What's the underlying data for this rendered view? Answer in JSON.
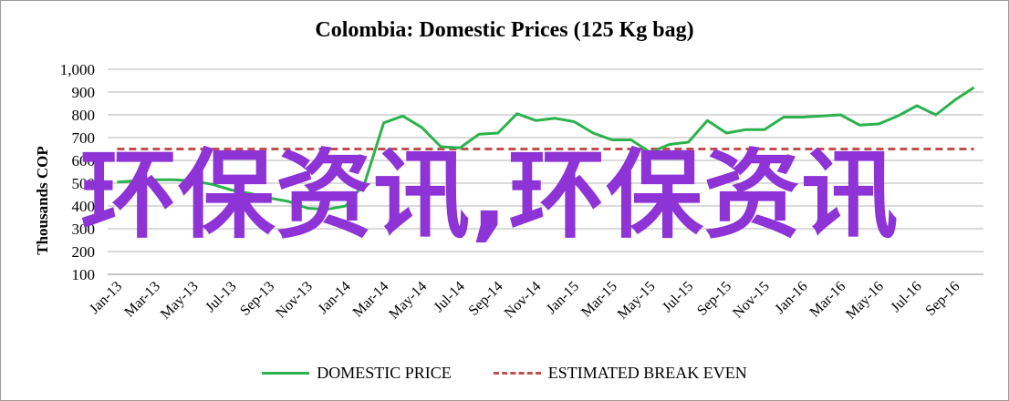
{
  "chart_data": {
    "type": "line",
    "title": "Colombia:  Domestic Prices (125 Kg bag)",
    "ylabel": "Thousands COP",
    "xlabel": "",
    "ylim": [
      100,
      1000
    ],
    "yticks": [
      "1,000",
      "900",
      "800",
      "700",
      "600",
      "500",
      "400",
      "300",
      "200",
      "100"
    ],
    "grid": true,
    "legend_position": "bottom",
    "x_tick_labels": [
      "Jan-13",
      "Mar-13",
      "May-13",
      "Jul-13",
      "Sep-13",
      "Nov-13",
      "Jan-14",
      "Mar-14",
      "May-14",
      "Jul-14",
      "Sep-14",
      "Nov-14",
      "Jan-15",
      "Mar-15",
      "May-15",
      "Jul-15",
      "Sep-15",
      "Nov-15",
      "Jan-16",
      "Mar-16",
      "May-16",
      "Jul-16",
      "Sep-16"
    ],
    "x": [
      "Jan-13",
      "Feb-13",
      "Mar-13",
      "Apr-13",
      "May-13",
      "Jun-13",
      "Jul-13",
      "Aug-13",
      "Sep-13",
      "Oct-13",
      "Nov-13",
      "Dec-13",
      "Jan-14",
      "Feb-14",
      "Mar-14",
      "Apr-14",
      "May-14",
      "Jun-14",
      "Jul-14",
      "Aug-14",
      "Sep-14",
      "Oct-14",
      "Nov-14",
      "Dec-14",
      "Jan-15",
      "Feb-15",
      "Mar-15",
      "Apr-15",
      "May-15",
      "Jun-15",
      "Jul-15",
      "Aug-15",
      "Sep-15",
      "Oct-15",
      "Nov-15",
      "Dec-15",
      "Jan-16",
      "Feb-16",
      "Mar-16",
      "Apr-16",
      "May-16",
      "Jun-16",
      "Jul-16",
      "Aug-16",
      "Sep-16",
      "Oct-16"
    ],
    "series": [
      {
        "name": "DOMESTIC PRICE",
        "color": "#2bb24c",
        "style": "solid",
        "values": [
          505,
          510,
          515,
          515,
          510,
          495,
          470,
          455,
          435,
          420,
          390,
          385,
          400,
          500,
          765,
          795,
          745,
          660,
          655,
          715,
          720,
          805,
          775,
          785,
          770,
          720,
          690,
          690,
          635,
          670,
          680,
          775,
          720,
          735,
          735,
          790,
          790,
          795,
          800,
          755,
          760,
          795,
          840,
          800,
          865,
          920
        ]
      },
      {
        "name": "ESTIMATED BREAK EVEN",
        "color": "#c0504d",
        "style": "dashed",
        "values": [
          650,
          650,
          650,
          650,
          650,
          650,
          650,
          650,
          650,
          650,
          650,
          650,
          650,
          650,
          650,
          650,
          650,
          650,
          650,
          650,
          650,
          650,
          650,
          650,
          650,
          650,
          650,
          650,
          650,
          650,
          650,
          650,
          650,
          650,
          650,
          650,
          650,
          650,
          650,
          650,
          650,
          650,
          650,
          650,
          650,
          650
        ]
      }
    ]
  },
  "watermark": {
    "text": "环保资讯,环保资讯",
    "color": "#8e33d6"
  }
}
